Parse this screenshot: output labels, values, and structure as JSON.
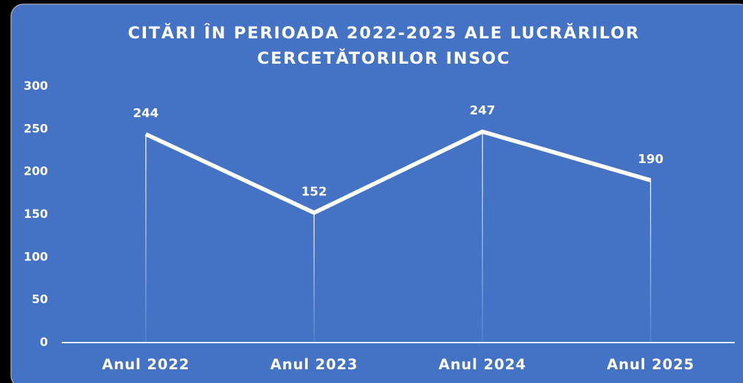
{
  "chart_data": {
    "type": "line",
    "title": "CITĂRI ÎN PERIOADA 2022-2025 ALE LUCRĂRILOR CERCETĂTORILOR INSOC",
    "categories": [
      "Anul 2022",
      "Anul 2023",
      "Anul 2024",
      "Anul 2025"
    ],
    "values": [
      244,
      152,
      247,
      190
    ],
    "color": "#ffffff",
    "background": "#4472c4",
    "ylim": [
      0,
      300
    ],
    "yticks": [
      0,
      50,
      100,
      150,
      200,
      250,
      300
    ],
    "grid": false,
    "drop_lines": true
  }
}
